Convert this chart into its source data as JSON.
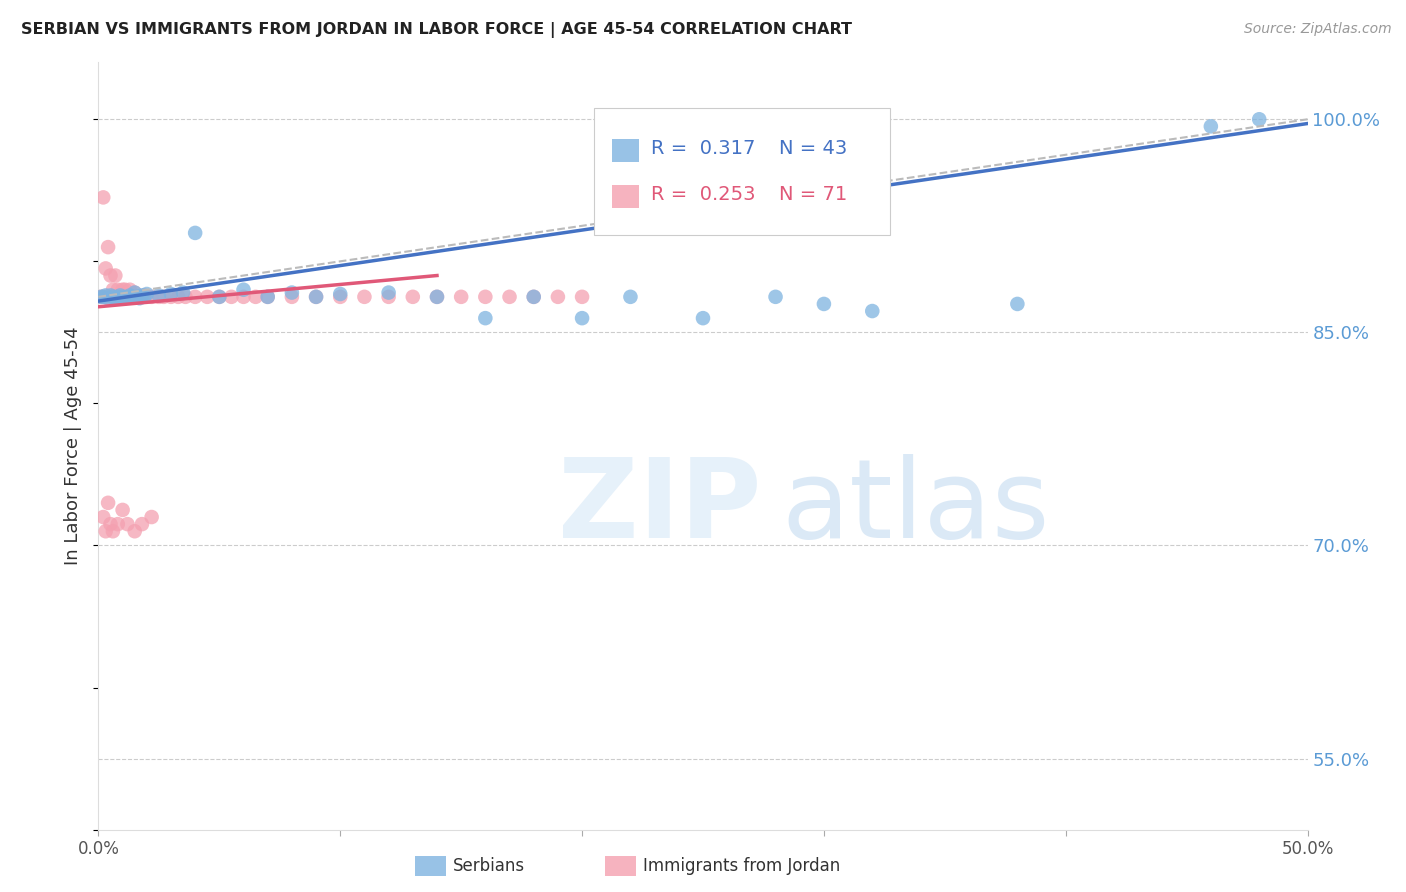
{
  "title": "SERBIAN VS IMMIGRANTS FROM JORDAN IN LABOR FORCE | AGE 45-54 CORRELATION CHART",
  "source": "Source: ZipAtlas.com",
  "ylabel": "In Labor Force | Age 45-54",
  "xlim": [
    0.0,
    0.5
  ],
  "ylim": [
    0.5,
    1.04
  ],
  "yticks_right": [
    1.0,
    0.85,
    0.7,
    0.55
  ],
  "yticklabels_right": [
    "100.0%",
    "85.0%",
    "70.0%",
    "55.0%"
  ],
  "background_color": "#ffffff",
  "serbian_color": "#7EB3E0",
  "jordan_color": "#F4A0B0",
  "serbian_trend_color": "#4472C4",
  "jordan_trend_color": "#E05878",
  "serbian_R": 0.317,
  "serbian_N": 43,
  "jordan_R": 0.253,
  "jordan_N": 71,
  "serbian_x": [
    0.001,
    0.002,
    0.003,
    0.004,
    0.005,
    0.006,
    0.007,
    0.008,
    0.009,
    0.01,
    0.011,
    0.012,
    0.013,
    0.014,
    0.015,
    0.016,
    0.017,
    0.018,
    0.019,
    0.02,
    0.025,
    0.03,
    0.035,
    0.04,
    0.05,
    0.06,
    0.07,
    0.08,
    0.09,
    0.1,
    0.12,
    0.14,
    0.16,
    0.18,
    0.2,
    0.22,
    0.25,
    0.28,
    0.3,
    0.32,
    0.38,
    0.46,
    0.48
  ],
  "serbian_y": [
    0.875,
    0.875,
    0.876,
    0.874,
    0.876,
    0.875,
    0.874,
    0.875,
    0.876,
    0.875,
    0.874,
    0.875,
    0.876,
    0.875,
    0.878,
    0.875,
    0.874,
    0.876,
    0.875,
    0.877,
    0.876,
    0.877,
    0.878,
    0.92,
    0.875,
    0.88,
    0.875,
    0.878,
    0.875,
    0.877,
    0.878,
    0.875,
    0.86,
    0.875,
    0.86,
    0.875,
    0.86,
    0.875,
    0.87,
    0.865,
    0.87,
    0.995,
    1.0
  ],
  "jordan_x": [
    0.001,
    0.002,
    0.002,
    0.003,
    0.003,
    0.004,
    0.004,
    0.005,
    0.005,
    0.006,
    0.006,
    0.007,
    0.007,
    0.008,
    0.008,
    0.009,
    0.009,
    0.01,
    0.01,
    0.011,
    0.011,
    0.012,
    0.012,
    0.013,
    0.013,
    0.014,
    0.014,
    0.015,
    0.015,
    0.016,
    0.017,
    0.018,
    0.019,
    0.02,
    0.022,
    0.025,
    0.027,
    0.03,
    0.033,
    0.036,
    0.04,
    0.045,
    0.05,
    0.055,
    0.06,
    0.065,
    0.07,
    0.08,
    0.09,
    0.1,
    0.11,
    0.12,
    0.13,
    0.14,
    0.15,
    0.16,
    0.17,
    0.18,
    0.19,
    0.2,
    0.002,
    0.003,
    0.004,
    0.005,
    0.006,
    0.008,
    0.01,
    0.012,
    0.015,
    0.018,
    0.022
  ],
  "jordan_y": [
    0.875,
    0.945,
    0.875,
    0.895,
    0.875,
    0.91,
    0.875,
    0.89,
    0.875,
    0.875,
    0.88,
    0.875,
    0.89,
    0.875,
    0.88,
    0.875,
    0.875,
    0.875,
    0.88,
    0.875,
    0.88,
    0.875,
    0.875,
    0.875,
    0.88,
    0.875,
    0.875,
    0.875,
    0.878,
    0.875,
    0.875,
    0.875,
    0.876,
    0.875,
    0.875,
    0.875,
    0.875,
    0.875,
    0.875,
    0.875,
    0.875,
    0.875,
    0.875,
    0.875,
    0.875,
    0.875,
    0.875,
    0.875,
    0.875,
    0.875,
    0.875,
    0.875,
    0.875,
    0.875,
    0.875,
    0.875,
    0.875,
    0.875,
    0.875,
    0.875,
    0.72,
    0.71,
    0.73,
    0.715,
    0.71,
    0.715,
    0.725,
    0.715,
    0.71,
    0.715,
    0.72
  ],
  "diag_line_x": [
    0.0,
    0.5
  ],
  "diag_line_y": [
    0.875,
    1.0
  ],
  "serbian_trend_x": [
    0.0,
    0.5
  ],
  "serbian_trend_y": [
    0.872,
    0.997
  ],
  "jordan_trend_x": [
    0.0,
    0.14
  ],
  "jordan_trend_y": [
    0.868,
    0.89
  ]
}
